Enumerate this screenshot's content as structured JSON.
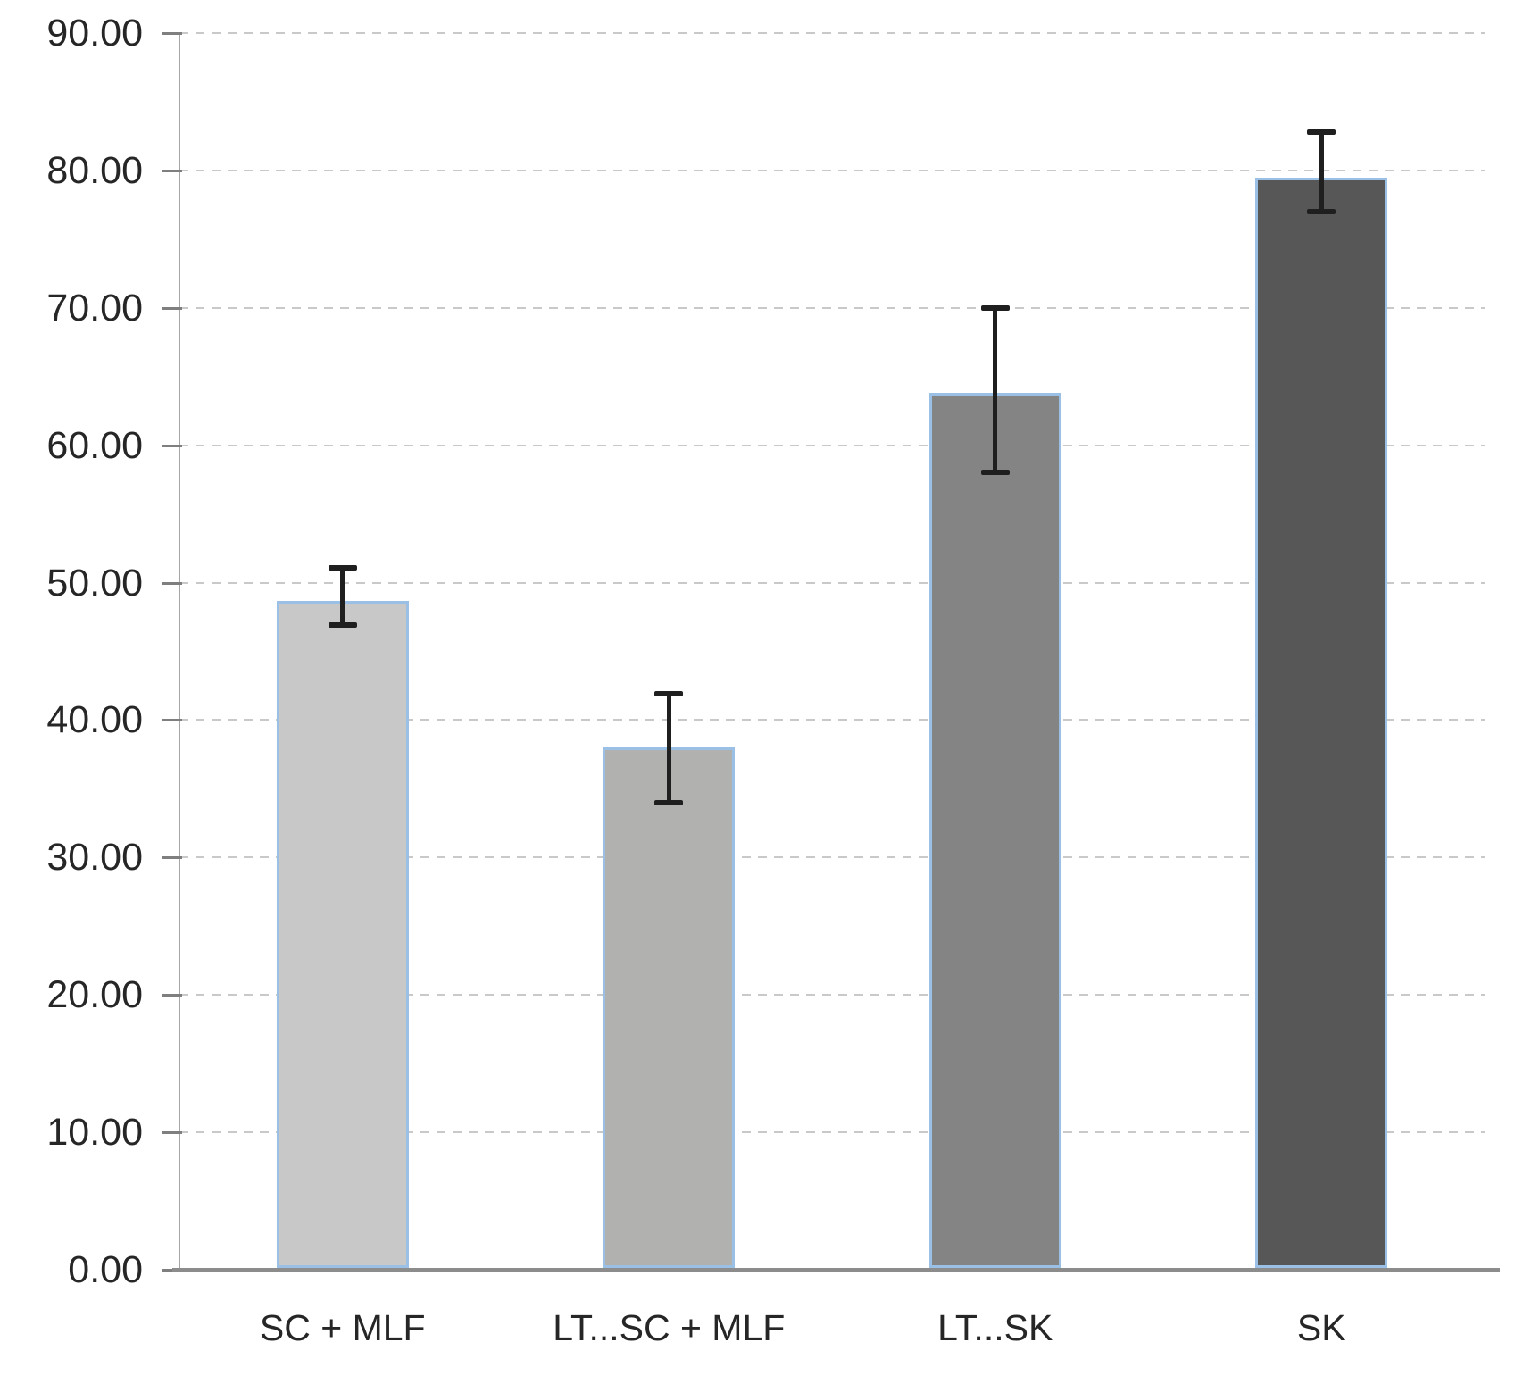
{
  "chart_data": {
    "type": "bar",
    "title": "",
    "xlabel": "",
    "ylabel": "",
    "categories": [
      "SC + MLF",
      "LT...SC + MLF",
      "LT...SK",
      "SK"
    ],
    "values": [
      48.7,
      38.0,
      63.8,
      79.5
    ],
    "error_top": [
      51.1,
      41.9,
      70.0,
      82.8
    ],
    "error_bottom": [
      46.9,
      34.0,
      58.0,
      77.0
    ],
    "bar_colors": [
      "#c8c8c8",
      "#b1b1af",
      "#848484",
      "#575757"
    ],
    "bar_border_color": "#9ac0e6",
    "ylim": [
      0,
      90
    ],
    "ytick_values": [
      0,
      10,
      20,
      30,
      40,
      50,
      60,
      70,
      80,
      90
    ],
    "ytick_labels": [
      "0.00",
      "10.00",
      "20.00",
      "30.00",
      "40.00",
      "50.00",
      "60.00",
      "70.00",
      "80.00",
      "90.00"
    ],
    "grid": "horizontal-dashed",
    "legend": "none",
    "colors": {
      "gridline": "#c9c9c9",
      "axis_line": "#a6a6a6",
      "baseline": "#8c8c8c",
      "tick": "#7f7f7f",
      "error_bar": "#1f1f1f",
      "text": "#262626",
      "background": "#ffffff"
    }
  }
}
